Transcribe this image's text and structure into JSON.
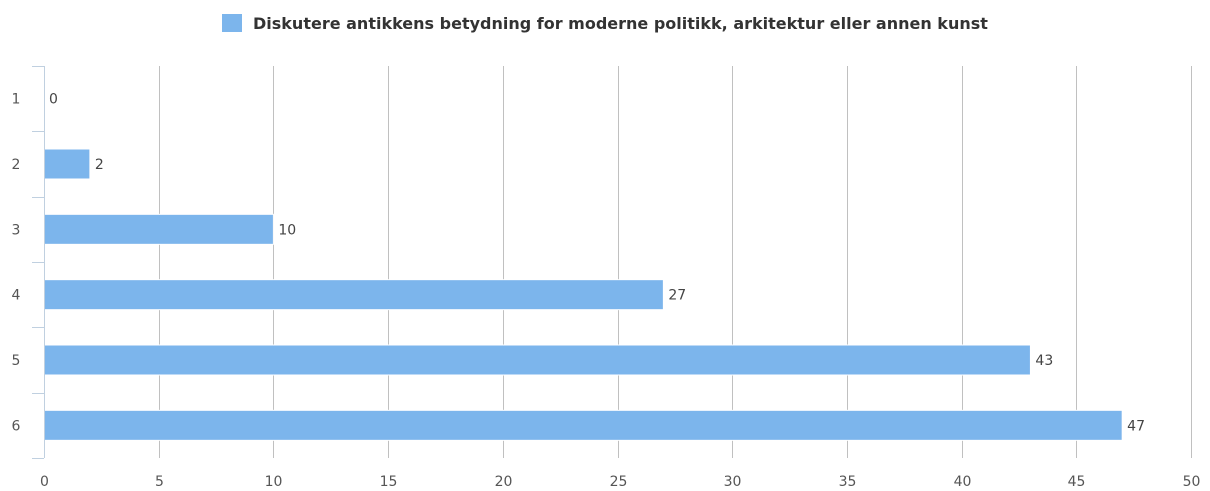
{
  "chart_data": {
    "type": "bar",
    "orientation": "horizontal",
    "categories": [
      "1",
      "2",
      "3",
      "4",
      "5",
      "6"
    ],
    "series": [
      {
        "name": "Diskutere antikkens betydning for moderne politikk, arkitektur eller annen kunst",
        "values": [
          0,
          2,
          10,
          27,
          43,
          47
        ]
      }
    ],
    "xlim": [
      0,
      50
    ],
    "x_ticks": [
      0,
      5,
      10,
      15,
      20,
      25,
      30,
      35,
      40,
      45,
      50
    ],
    "grid": true,
    "legend_position": "top-center",
    "data_labels": true
  },
  "colors": {
    "bar": "#7cb5ec",
    "grid": "#c0c0c0",
    "axis": "#c0d0e0"
  }
}
